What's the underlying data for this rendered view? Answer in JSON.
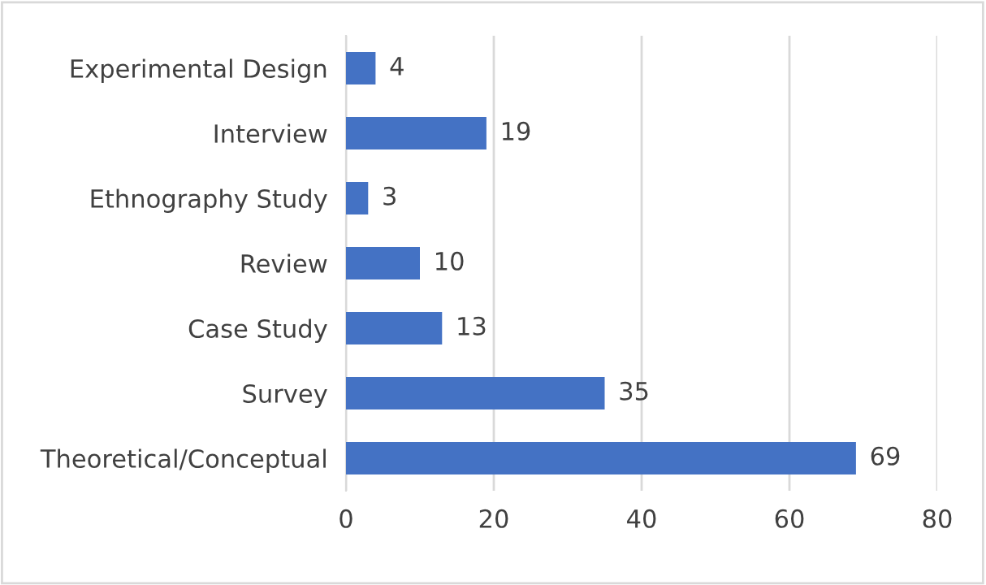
{
  "chart_data": {
    "type": "bar",
    "orientation": "horizontal",
    "categories": [
      "Experimental Design",
      "Interview",
      "Ethnography Study",
      "Review",
      "Case Study",
      "Survey",
      "Theoretical/Conceptual"
    ],
    "values": [
      4,
      19,
      3,
      10,
      13,
      35,
      69
    ],
    "color": "#4472c4",
    "xlim": [
      0,
      80
    ],
    "xticks": [
      0,
      20,
      40,
      60,
      80
    ],
    "grid": "x",
    "data_labels": true
  }
}
